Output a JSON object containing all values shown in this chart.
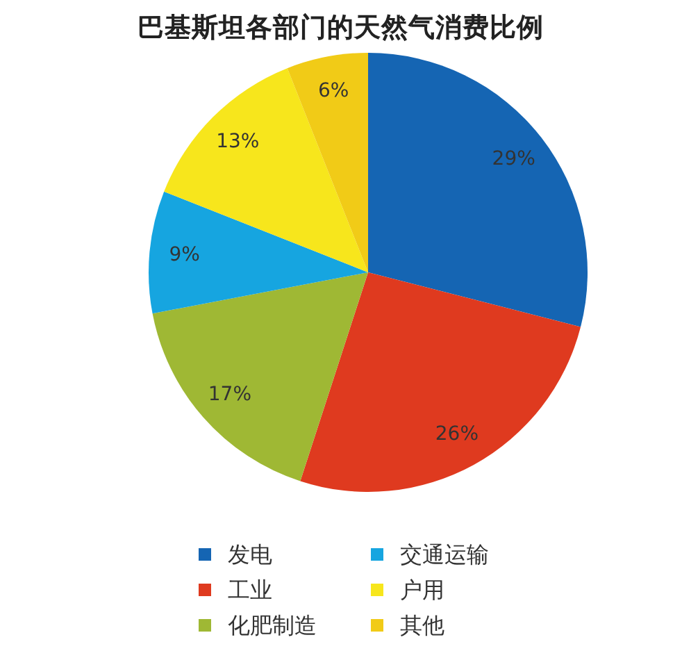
{
  "chart_data": {
    "type": "pie",
    "title": "巴基斯坦各部门的天然气消费比例",
    "categories": [
      "发电",
      "工业",
      "化肥制造",
      "交通运输",
      "户用",
      "其他"
    ],
    "values": [
      29,
      26,
      17,
      9,
      13,
      6
    ],
    "colors": [
      "#1565b3",
      "#df3a1f",
      "#9fb834",
      "#16a5e0",
      "#f7e61c",
      "#f1cb17"
    ],
    "value_labels": [
      "29%",
      "26%",
      "17%",
      "9%",
      "13%",
      "6%"
    ],
    "legend": "bottom"
  }
}
